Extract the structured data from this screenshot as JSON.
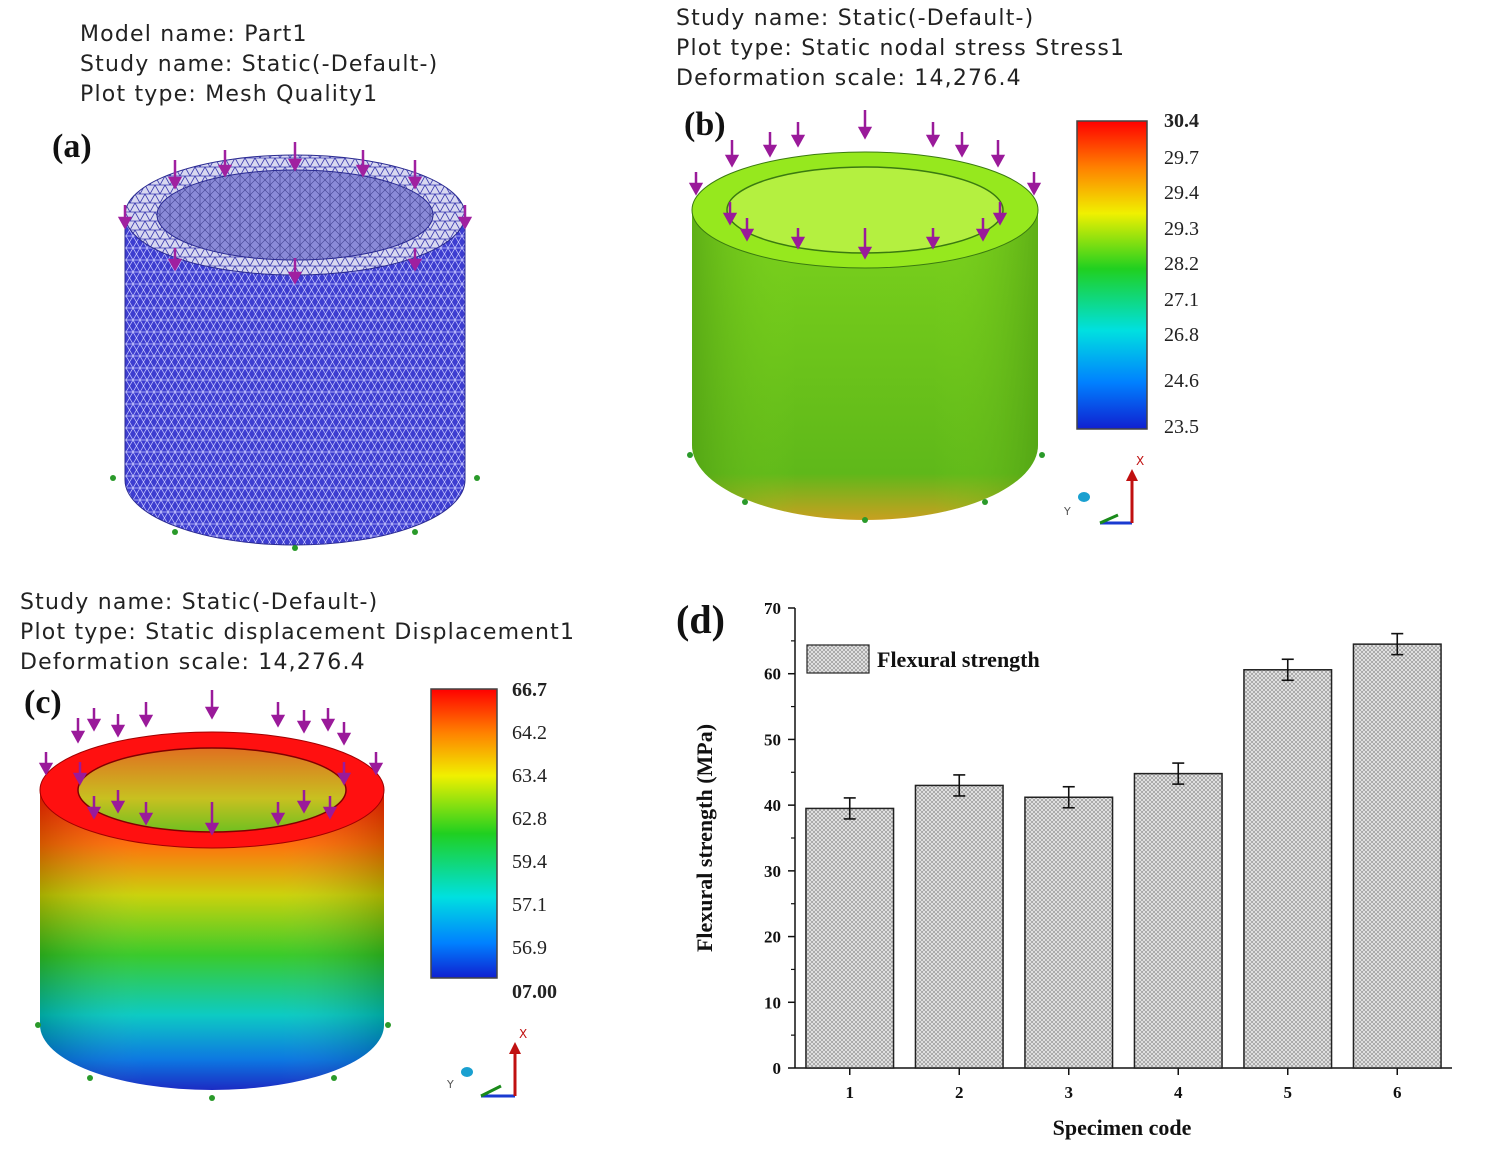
{
  "panel_a": {
    "label": "(a)",
    "header": [
      "Model name: Part1",
      "Study name: Static(-Default-)",
      "Plot type: Mesh Quality1"
    ],
    "colors": {
      "mesh": "#4a4ad8",
      "load_arrow": "#a020a0",
      "fixture": "#2a9a2a"
    }
  },
  "panel_b": {
    "label": "(b)",
    "header": [
      "Study name: Static(-Default-)",
      "Plot type: Static nodal stress Stress1",
      "Deformation scale: 14,276.4"
    ],
    "legend_values": [
      "30.4",
      "29.7",
      "29.4",
      "29.3",
      "28.2",
      "27.1",
      "26.8",
      "24.6",
      "23.5"
    ]
  },
  "panel_c": {
    "label": "(c)",
    "header": [
      "Study name: Static(-Default-)",
      "Plot type: Static displacement Displacement1",
      "Deformation scale: 14,276.4"
    ],
    "legend_values": [
      "66.7",
      "64.2",
      "63.4",
      "62.8",
      "59.4",
      "57.1",
      "56.9",
      "07.00"
    ]
  },
  "axis_triad": {
    "x_label": "X",
    "y_label": "Y"
  },
  "chart_data": {
    "type": "bar",
    "panel_label": "(d)",
    "categories": [
      "1",
      "2",
      "3",
      "4",
      "5",
      "6"
    ],
    "series": [
      {
        "name": "Flexural strength",
        "values": [
          39.5,
          43.0,
          41.2,
          44.8,
          60.6,
          64.5
        ],
        "errors": [
          1.6,
          1.6,
          1.6,
          1.6,
          1.6,
          1.6
        ]
      }
    ],
    "xlabel": "Specimen code",
    "ylabel": "Flexural strength (MPa)",
    "ylim": [
      0,
      70
    ],
    "yticks": [
      "0",
      "10",
      "20",
      "30",
      "40",
      "50",
      "60",
      "70"
    ],
    "legend": "top-left",
    "legend_label": "Flexural strength"
  }
}
